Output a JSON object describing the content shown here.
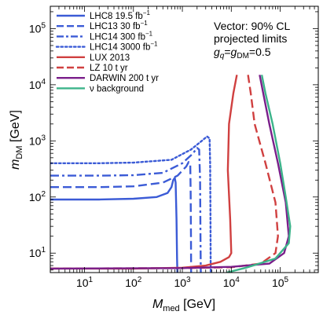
{
  "chart_data": {
    "type": "line",
    "title": "",
    "x_axis": {
      "label_main": "M",
      "label_sub": "med",
      "label_unit": "[GeV]",
      "scale": "log",
      "range": [
        2,
        600000
      ],
      "tick_labels": [
        {
          "value": 10,
          "base": "10",
          "exp": "1"
        },
        {
          "value": 100,
          "base": "10",
          "exp": "2"
        },
        {
          "value": 1000,
          "base": "10",
          "exp": "3"
        },
        {
          "value": 10000,
          "base": "10",
          "exp": "4"
        },
        {
          "value": 100000,
          "base": "10",
          "exp": "5"
        }
      ]
    },
    "y_axis": {
      "label_main": "m",
      "label_sub": "DM",
      "label_unit": "[GeV]",
      "scale": "log",
      "range": [
        4.5,
        250000
      ],
      "tick_labels": [
        {
          "value": 10,
          "base": "10",
          "exp": "1"
        },
        {
          "value": 100,
          "base": "10",
          "exp": "2"
        },
        {
          "value": 1000,
          "base": "10",
          "exp": "3"
        },
        {
          "value": 10000,
          "base": "10",
          "exp": "4"
        },
        {
          "value": 100000,
          "base": "10",
          "exp": "5"
        }
      ]
    },
    "annotation": {
      "line1": "Vector: 90% CL",
      "line2": "projected limits",
      "line3_g": "g",
      "line3_sub1": "q",
      "line3_eq": "=",
      "line3_g2": "g",
      "line3_sub2": "DM",
      "line3_val": "=0.5"
    },
    "legend_position": "top-left",
    "grid": false,
    "series": [
      {
        "name": "LHC8 19.5 fb",
        "name_sup": "−1",
        "color": "#3b5bd6",
        "dash": "solid",
        "points": [
          [
            2,
            90
          ],
          [
            20,
            90
          ],
          [
            100,
            93
          ],
          [
            300,
            100
          ],
          [
            500,
            118
          ],
          [
            600,
            150
          ],
          [
            650,
            200
          ],
          [
            700,
            220
          ],
          [
            730,
            180
          ],
          [
            760,
            40
          ],
          [
            780,
            8
          ],
          [
            790,
            4.5
          ]
        ]
      },
      {
        "name": "LHC13 30 fb",
        "name_sup": "−1",
        "color": "#3b5bd6",
        "dash": "longdash",
        "points": [
          [
            2,
            150
          ],
          [
            20,
            150
          ],
          [
            100,
            155
          ],
          [
            400,
            180
          ],
          [
            800,
            240
          ],
          [
            1200,
            350
          ],
          [
            1350,
            420
          ],
          [
            1450,
            380
          ],
          [
            1480,
            120
          ],
          [
            1500,
            20
          ],
          [
            1510,
            4.5
          ]
        ]
      },
      {
        "name": "LHC14 300 fb",
        "name_sup": "−1",
        "color": "#3b5bd6",
        "dash": "dashdot",
        "points": [
          [
            2,
            240
          ],
          [
            20,
            240
          ],
          [
            100,
            245
          ],
          [
            400,
            270
          ],
          [
            1000,
            400
          ],
          [
            1600,
            580
          ],
          [
            2000,
            750
          ],
          [
            2200,
            700
          ],
          [
            2300,
            200
          ],
          [
            2350,
            20
          ],
          [
            2380,
            4.5
          ]
        ]
      },
      {
        "name": "LHC14 3000 fb",
        "name_sup": "−1",
        "color": "#3b5bd6",
        "dash": "dot",
        "points": [
          [
            2,
            400
          ],
          [
            20,
            400
          ],
          [
            100,
            410
          ],
          [
            600,
            460
          ],
          [
            1500,
            700
          ],
          [
            2500,
            1000
          ],
          [
            3200,
            1200
          ],
          [
            3600,
            1100
          ],
          [
            3700,
            400
          ],
          [
            3750,
            50
          ],
          [
            3800,
            4.5
          ]
        ]
      },
      {
        "name": "LUX 2013",
        "name_sup": "",
        "color": "#d04040",
        "dash": "solid",
        "points": [
          [
            2,
            5.3
          ],
          [
            100,
            5.3
          ],
          [
            1000,
            5.5
          ],
          [
            3000,
            6
          ],
          [
            6000,
            7
          ],
          [
            9000,
            8.5
          ],
          [
            10000,
            10
          ],
          [
            9500,
            40
          ],
          [
            8500,
            300
          ],
          [
            9000,
            2000
          ],
          [
            11000,
            7000
          ],
          [
            13000,
            15000
          ]
        ]
      },
      {
        "name": "LZ 10 t yr",
        "name_sup": "",
        "color": "#d04040",
        "dash": "longdash",
        "points": [
          [
            2,
            5.3
          ],
          [
            1000,
            5.4
          ],
          [
            10000,
            5.6
          ],
          [
            40000,
            6.5
          ],
          [
            80000,
            10
          ],
          [
            90000,
            20
          ],
          [
            80000,
            80
          ],
          [
            50000,
            400
          ],
          [
            30000,
            2000
          ],
          [
            25000,
            7000
          ],
          [
            22000,
            15000
          ]
        ]
      },
      {
        "name": "DARWIN 200 t yr",
        "name_sup": "",
        "color": "#7a1e8a",
        "dash": "solid",
        "points": [
          [
            2,
            5.3
          ],
          [
            1000,
            5.4
          ],
          [
            10000,
            5.7
          ],
          [
            60000,
            6.5
          ],
          [
            120000,
            10
          ],
          [
            150000,
            20
          ],
          [
            130000,
            80
          ],
          [
            90000,
            400
          ],
          [
            60000,
            2000
          ],
          [
            45000,
            7000
          ],
          [
            38000,
            15000
          ]
        ]
      },
      {
        "name": "ν background",
        "name_sup": "",
        "color": "#3cb38a",
        "dash": "solid",
        "points": [
          [
            8000,
            4.5
          ],
          [
            20000,
            5.5
          ],
          [
            80000,
            8
          ],
          [
            150000,
            15
          ],
          [
            160000,
            30
          ],
          [
            130000,
            100
          ],
          [
            100000,
            400
          ],
          [
            70000,
            2000
          ],
          [
            50000,
            7000
          ],
          [
            42000,
            15000
          ]
        ]
      }
    ]
  }
}
